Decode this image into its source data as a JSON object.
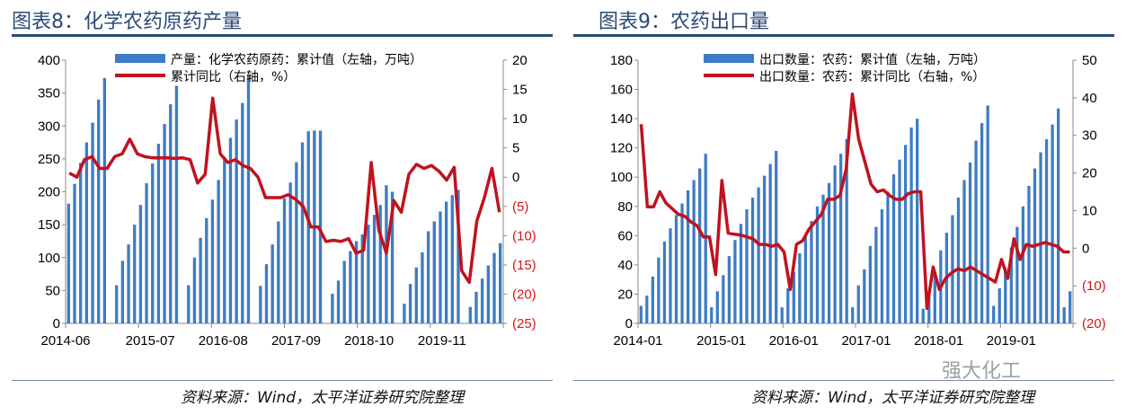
{
  "watermark": "强大化工",
  "chart_data": [
    {
      "type": "bar",
      "title": "图表8：化学农药原药产量",
      "source": "资料来源：Wind，太平洋证券研究院整理",
      "legend": [
        "产量：化学农药原药：累计值（左轴，万吨）",
        "累计同比（右轴，%）"
      ],
      "legend_position": "top-center",
      "xlabels": [
        "2014-06",
        "2015-07",
        "2016-08",
        "2017-09",
        "2018-10",
        "2019-11"
      ],
      "left_axis": {
        "min": 0,
        "max": 400,
        "ticks": [
          "0",
          "50",
          "100",
          "150",
          "200",
          "250",
          "300",
          "350",
          "400"
        ]
      },
      "right_axis": {
        "min": -25,
        "max": 20,
        "ticks": [
          "(25)",
          "(20)",
          "(15)",
          "(10)",
          "(5)",
          "0",
          "5",
          "10",
          "15",
          "20"
        ]
      },
      "series": [
        {
          "name": "产量：化学农药原药：累计值（左轴，万吨）",
          "kind": "bar",
          "axis": "left",
          "color": "#3d7cc4",
          "values": [
            182,
            212,
            244,
            275,
            305,
            340,
            373,
            null,
            58,
            95,
            120,
            150,
            180,
            213,
            243,
            273,
            303,
            333,
            361,
            null,
            58,
            100,
            130,
            160,
            188,
            218,
            250,
            282,
            310,
            335,
            375,
            null,
            57,
            90,
            120,
            155,
            190,
            214,
            245,
            275,
            292,
            293,
            293,
            null,
            45,
            65,
            95,
            110,
            125,
            135,
            150,
            165,
            180,
            210,
            200,
            null,
            30,
            60,
            85,
            108,
            140,
            155,
            170,
            185,
            195,
            203,
            null,
            25,
            48,
            68,
            88,
            107,
            122
          ]
        },
        {
          "name": "累计同比（右轴，%）",
          "kind": "line",
          "axis": "right",
          "color": "#c0121f",
          "values": [
            0.7,
            0,
            3,
            3.5,
            1.5,
            1.5,
            3.5,
            4,
            6.5,
            4,
            3.5,
            3.3,
            3.3,
            3.3,
            3.2,
            3.3,
            3,
            -1,
            0.5,
            13.5,
            4,
            2.5,
            3,
            2,
            1.5,
            0,
            -3.5,
            -3.5,
            -3.5,
            -3,
            -3.8,
            -5,
            -8.5,
            -8.5,
            -11,
            -10.8,
            -11,
            -10.5,
            -13,
            -12.5,
            2.5,
            -9,
            -13,
            -4,
            -6,
            0.5,
            2.2,
            1.5,
            2,
            1,
            -0.5,
            1.7,
            -16,
            -18,
            -7.5,
            -3.5,
            1.5,
            -6
          ]
        }
      ]
    },
    {
      "type": "bar",
      "title": "图表9：农药出口量",
      "source": "资料来源：Wind，太平洋证券研究院整理",
      "legend": [
        "出口数量：农药：累计值（左轴，万吨）",
        "出口数量：农药：累计同比（右轴，%）"
      ],
      "legend_position": "top-center",
      "xlabels": [
        "2014-01",
        "2015-01",
        "2016-01",
        "2017-01",
        "2018-01",
        "2019-01"
      ],
      "left_axis": {
        "min": 0,
        "max": 180,
        "ticks": [
          "0",
          "20",
          "40",
          "60",
          "80",
          "100",
          "120",
          "140",
          "160",
          "180"
        ]
      },
      "right_axis": {
        "min": -20,
        "max": 50,
        "ticks": [
          "(20)",
          "(10)",
          "0",
          "10",
          "20",
          "30",
          "40",
          "50"
        ]
      },
      "series": [
        {
          "name": "出口数量：农药：累计值（左轴，万吨）",
          "kind": "bar",
          "axis": "left",
          "color": "#3d7cc4",
          "values": [
            12,
            19,
            32,
            45,
            56,
            65,
            74,
            82,
            91,
            98,
            106,
            116,
            11,
            22,
            33,
            46,
            57,
            68,
            78,
            86,
            93,
            101,
            109,
            118,
            11,
            24,
            35,
            48,
            60,
            70,
            80,
            88,
            96,
            108,
            116,
            126,
            11,
            26,
            37,
            53,
            66,
            78,
            90,
            102,
            112,
            122,
            134,
            140,
            10,
            22,
            35,
            50,
            62,
            74,
            86,
            98,
            110,
            125,
            137,
            149,
            12,
            24,
            38,
            52,
            66,
            80,
            94,
            106,
            117,
            126,
            136,
            147,
            11,
            22
          ]
        },
        {
          "name": "出口数量：农药：累计同比（右轴，%）",
          "kind": "line",
          "axis": "right",
          "color": "#c0121f",
          "values": [
            33,
            11,
            11,
            15,
            12,
            10.5,
            9,
            8.5,
            7,
            6,
            3,
            3,
            -7,
            18,
            4,
            3.7,
            3.5,
            3,
            2.5,
            1,
            1,
            0.5,
            1,
            -1,
            -11,
            1,
            2,
            5,
            7,
            9,
            13,
            13,
            14,
            21,
            41,
            29,
            23,
            17,
            15,
            15.5,
            14,
            13,
            13,
            14.5,
            15,
            15,
            -16,
            -5,
            -11,
            -8,
            -6.5,
            -5.5,
            -6,
            -5,
            -6,
            -7,
            -8,
            -9,
            -3,
            -8,
            2.5,
            -3,
            1,
            0.5,
            1,
            1.5,
            1,
            0.5,
            -1,
            -1
          ]
        }
      ]
    }
  ]
}
